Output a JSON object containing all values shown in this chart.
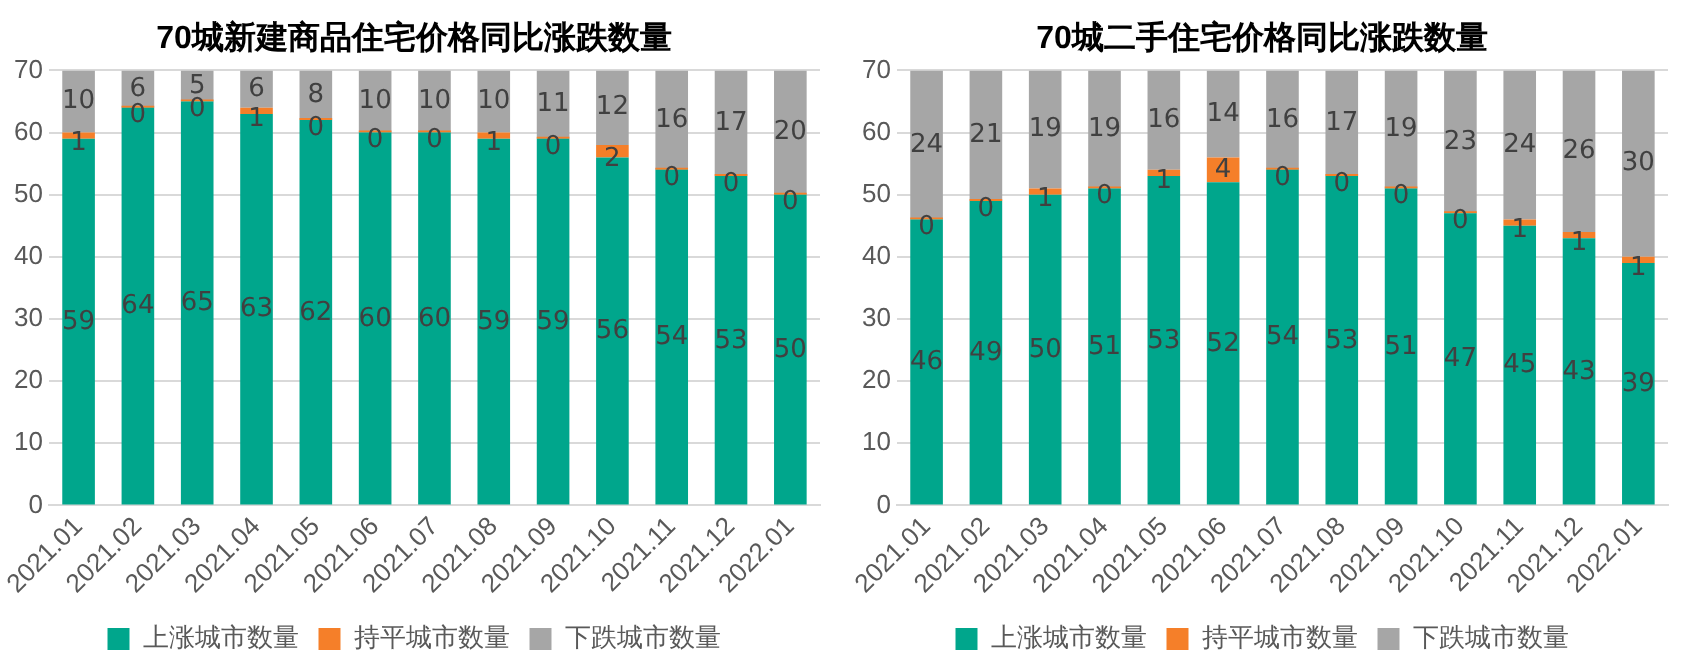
{
  "chart_data": [
    {
      "type": "bar",
      "title": "70城新建商品住宅价格同比涨跌数量",
      "stacked": true,
      "categories": [
        "2021.01",
        "2021.02",
        "2021.03",
        "2021.04",
        "2021.05",
        "2021.06",
        "2021.07",
        "2021.08",
        "2021.09",
        "2021.10",
        "2021.11",
        "2021.12",
        "2022.01"
      ],
      "series": [
        {
          "name": "上涨城市数量",
          "color": "#00a68c",
          "values": [
            59,
            64,
            65,
            63,
            62,
            60,
            60,
            59,
            59,
            56,
            54,
            53,
            50
          ]
        },
        {
          "name": "持平城市数量",
          "color": "#f57f29",
          "values": [
            1,
            0,
            0,
            1,
            0,
            0,
            0,
            1,
            0,
            2,
            0,
            0,
            0
          ]
        },
        {
          "name": "下跌城市数量",
          "color": "#a6a6a6",
          "values": [
            10,
            6,
            5,
            6,
            8,
            10,
            10,
            10,
            11,
            12,
            16,
            17,
            20
          ]
        }
      ],
      "ylim": [
        0,
        70
      ],
      "yticks": [
        0,
        10,
        20,
        30,
        40,
        50,
        60,
        70
      ],
      "grid": "y",
      "legend": "bottom",
      "data_labels": true
    },
    {
      "type": "bar",
      "title": "70城二手住宅价格同比涨跌数量",
      "stacked": true,
      "categories": [
        "2021.01",
        "2021.02",
        "2021.03",
        "2021.04",
        "2021.05",
        "2021.06",
        "2021.07",
        "2021.08",
        "2021.09",
        "2021.10",
        "2021.11",
        "2021.12",
        "2022.01"
      ],
      "series": [
        {
          "name": "上涨城市数量",
          "color": "#00a68c",
          "values": [
            46,
            49,
            50,
            51,
            53,
            52,
            54,
            53,
            51,
            47,
            45,
            43,
            39
          ]
        },
        {
          "name": "持平城市数量",
          "color": "#f57f29",
          "values": [
            0,
            0,
            1,
            0,
            1,
            4,
            0,
            0,
            0,
            0,
            1,
            1,
            1
          ]
        },
        {
          "name": "下跌城市数量",
          "color": "#a6a6a6",
          "values": [
            24,
            21,
            19,
            19,
            16,
            14,
            16,
            17,
            19,
            23,
            24,
            26,
            30
          ]
        }
      ],
      "ylim": [
        0,
        70
      ],
      "yticks": [
        0,
        10,
        20,
        30,
        40,
        50,
        60,
        70
      ],
      "grid": "y",
      "legend": "bottom",
      "data_labels": true
    }
  ]
}
